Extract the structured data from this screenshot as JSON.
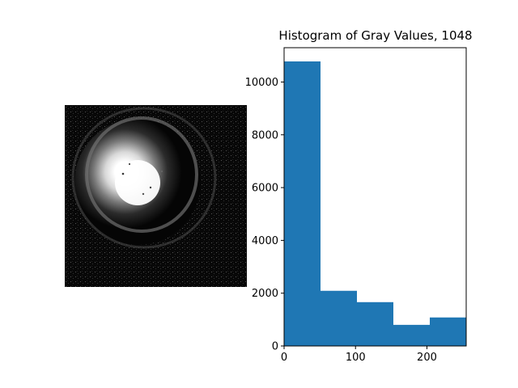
{
  "figure": {
    "image_panel": {
      "description_icon": "grayscale-image-icon"
    },
    "histogram": {
      "title": "Histogram of Gray Values, 1048"
    }
  },
  "chart_data": {
    "type": "bar",
    "title": "Histogram of Gray Values, 1048",
    "xlabel": "",
    "ylabel": "",
    "bins": [
      {
        "x0": 0,
        "x1": 51,
        "value": 10780
      },
      {
        "x0": 51,
        "x1": 102,
        "value": 2090
      },
      {
        "x0": 102,
        "x1": 153,
        "value": 1660
      },
      {
        "x0": 153,
        "x1": 204,
        "value": 800
      },
      {
        "x0": 204,
        "x1": 255,
        "value": 1080
      }
    ],
    "xlim": [
      0,
      255
    ],
    "ylim": [
      0,
      11300
    ],
    "xticks": [
      0,
      100,
      200
    ],
    "yticks": [
      0,
      2000,
      4000,
      6000,
      8000,
      10000
    ],
    "bar_color": "#1f77b4",
    "grid": false
  }
}
